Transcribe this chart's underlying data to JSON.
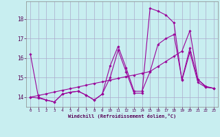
{
  "xlabel": "Windchill (Refroidissement éolien,°C)",
  "bg_color": "#c8eef0",
  "line_color": "#990099",
  "grid_color": "#aaaacc",
  "xlim": [
    -0.5,
    23.5
  ],
  "ylim": [
    13.5,
    18.9
  ],
  "xticks": [
    0,
    1,
    2,
    3,
    4,
    5,
    6,
    7,
    8,
    9,
    10,
    11,
    12,
    13,
    14,
    15,
    16,
    17,
    18,
    19,
    20,
    21,
    22,
    23
  ],
  "yticks": [
    14,
    15,
    16,
    17,
    18
  ],
  "line1_x": [
    0,
    1,
    2,
    3,
    4,
    5,
    6,
    7,
    8,
    9,
    10,
    11,
    12,
    13,
    14,
    15,
    16,
    17,
    18,
    19,
    20,
    21,
    22,
    23
  ],
  "line1_y": [
    16.2,
    14.0,
    13.85,
    13.75,
    14.15,
    14.25,
    14.3,
    14.1,
    13.85,
    14.15,
    15.6,
    16.6,
    15.5,
    14.3,
    14.3,
    15.3,
    16.7,
    17.0,
    17.2,
    14.9,
    16.5,
    14.9,
    14.55,
    14.45
  ],
  "line2_x": [
    0,
    1,
    2,
    3,
    4,
    5,
    6,
    7,
    8,
    9,
    10,
    11,
    12,
    13,
    14,
    15,
    16,
    17,
    18,
    19,
    20,
    21,
    22,
    23
  ],
  "line2_y": [
    14.0,
    13.95,
    13.85,
    13.75,
    14.15,
    14.25,
    14.3,
    14.1,
    13.85,
    14.15,
    15.0,
    16.4,
    15.3,
    14.2,
    14.2,
    18.55,
    18.4,
    18.2,
    17.8,
    14.85,
    16.3,
    14.75,
    14.5,
    14.45
  ],
  "line3_x": [
    0,
    1,
    2,
    3,
    4,
    5,
    6,
    7,
    8,
    9,
    10,
    11,
    12,
    13,
    14,
    15,
    16,
    17,
    18,
    19,
    20,
    21,
    22,
    23
  ],
  "line3_y": [
    14.0,
    14.08,
    14.17,
    14.26,
    14.35,
    14.43,
    14.52,
    14.61,
    14.7,
    14.78,
    14.87,
    14.96,
    15.05,
    15.13,
    15.22,
    15.31,
    15.57,
    15.83,
    16.09,
    16.35,
    17.4,
    14.9,
    14.52,
    14.45
  ]
}
